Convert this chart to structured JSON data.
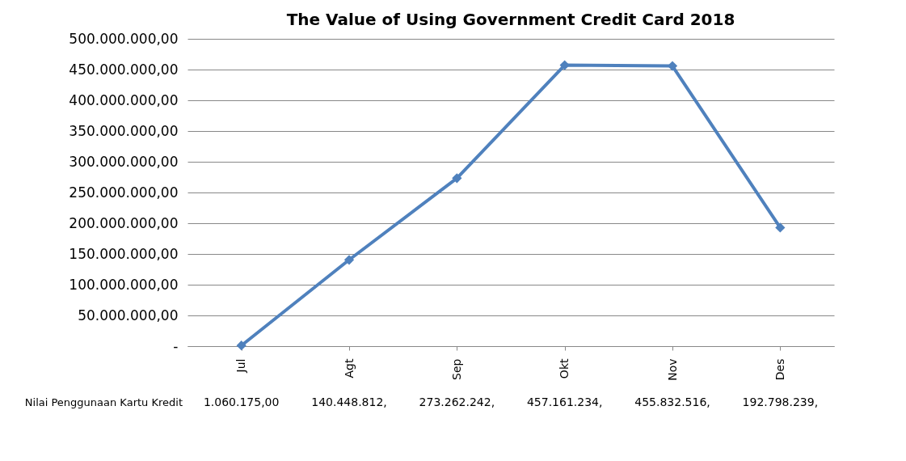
{
  "chart_data": {
    "type": "line",
    "title": "The Value of Using  Government Credit Card 2018",
    "categories": [
      "Jul",
      "Agt",
      "Sep",
      "Okt",
      "Nov",
      "Des"
    ],
    "series": [
      {
        "name": "Nilai Penggunaan Kartu Kredit",
        "color": "#4f81bd",
        "values": [
          1060175,
          140448812,
          273262242,
          457161234,
          455832516,
          192798239
        ],
        "value_labels": [
          "1.060.175,00",
          "140.448.812,",
          "273.262.242,",
          "457.161.234,",
          "455.832.516,",
          "192.798.239,"
        ]
      }
    ],
    "ylim": [
      0,
      500000000
    ],
    "yticks": [
      {
        "value": 0,
        "label": "-"
      },
      {
        "value": 50000000,
        "label": "50.000.000,00"
      },
      {
        "value": 100000000,
        "label": "100.000.000,00"
      },
      {
        "value": 150000000,
        "label": "150.000.000,00"
      },
      {
        "value": 200000000,
        "label": "200.000.000,00"
      },
      {
        "value": 250000000,
        "label": "250.000.000,00"
      },
      {
        "value": 300000000,
        "label": "300.000.000,00"
      },
      {
        "value": 350000000,
        "label": "350.000.000,00"
      },
      {
        "value": 400000000,
        "label": "400.000.000,00"
      },
      {
        "value": 450000000,
        "label": "450.000.000,00"
      },
      {
        "value": 500000000,
        "label": "500.000.000,00"
      }
    ],
    "grid": "y",
    "marker": "diamond",
    "line_style": "solid",
    "legend": false
  }
}
